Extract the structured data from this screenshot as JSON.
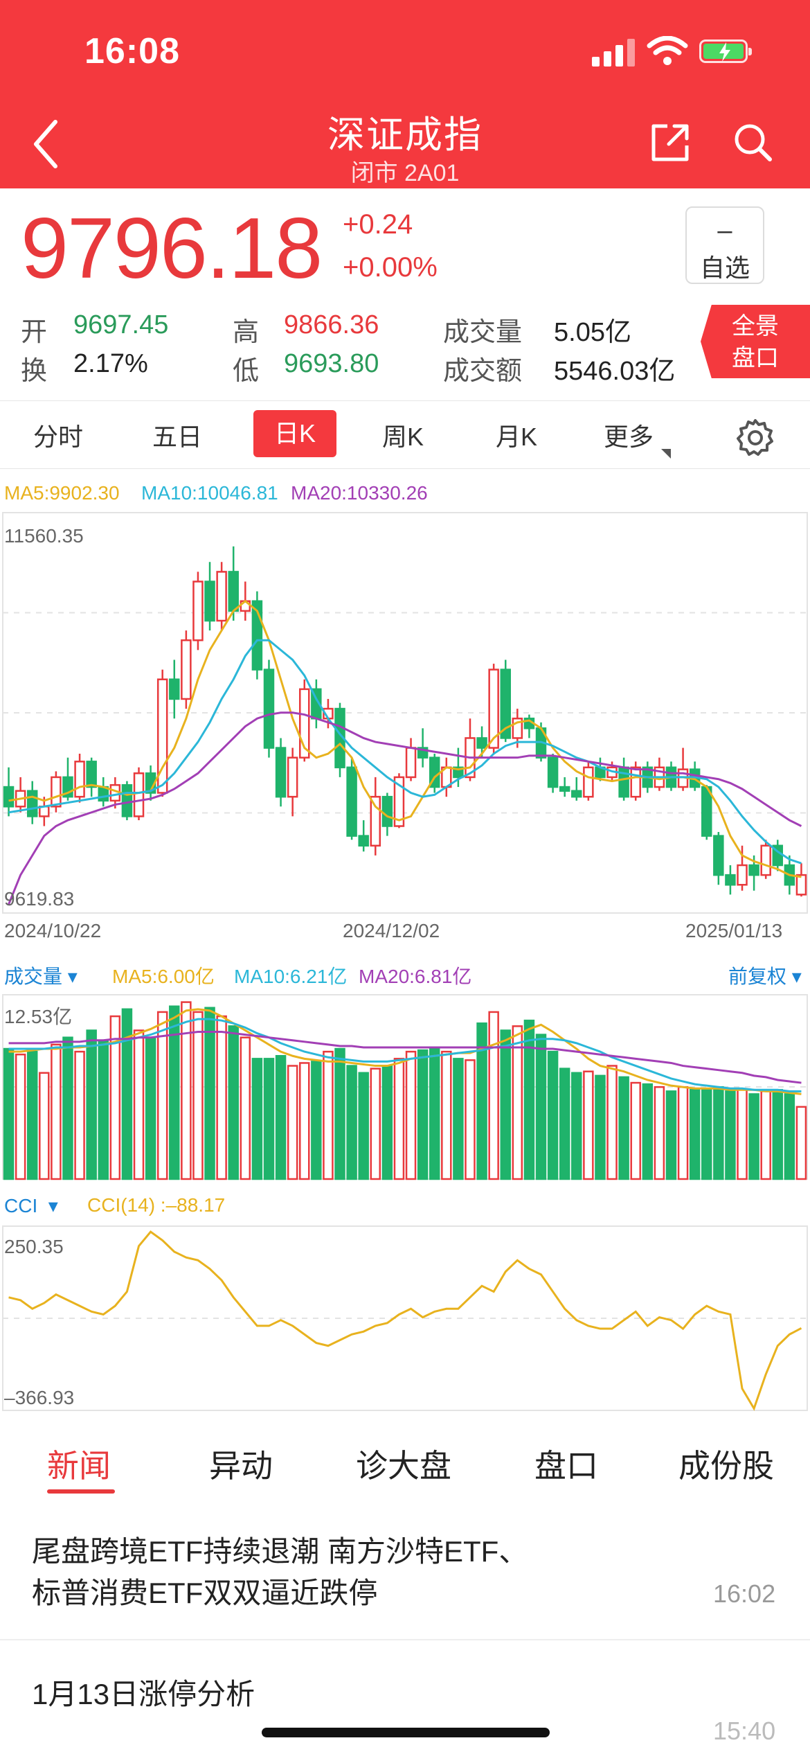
{
  "status": {
    "time": "16:08"
  },
  "header": {
    "title": "深证成指",
    "subtitle": "闭市 2A01",
    "back_icon": "chevron-left-icon",
    "share_icon": "share-icon",
    "search_icon": "search-icon"
  },
  "quote": {
    "price": "9796.18",
    "change": "+0.24",
    "change_pct": "+0.00%",
    "favorite": {
      "mark": "–",
      "label": "自选"
    },
    "stats": [
      {
        "label": "开",
        "value": "9697.45",
        "color": "green"
      },
      {
        "label": "高",
        "value": "9866.36",
        "color": "red"
      },
      {
        "label": "成交量",
        "value": "5.05亿",
        "color": "dark"
      },
      {
        "label": "换",
        "value": "2.17%",
        "color": "dark"
      },
      {
        "label": "低",
        "value": "9693.80",
        "color": "green"
      },
      {
        "label": "成交额",
        "value": "5546.03亿",
        "color": "dark"
      }
    ],
    "panorama": {
      "line1": "全景",
      "line2": "盘口"
    }
  },
  "tabs": {
    "items": [
      "分时",
      "五日",
      "日K",
      "周K",
      "月K",
      "更多"
    ],
    "active": "日K",
    "settings_icon": "gear-icon"
  },
  "main_chart": {
    "ma_labels": [
      "MA5:9902.30",
      "MA10:10046.81",
      "MA20:10330.26"
    ],
    "ma_colors": [
      "#e8b21e",
      "#2bb7d8",
      "#a23fb5"
    ],
    "y_max_label": "11560.35",
    "y_min_label": "9619.83",
    "dates": [
      "2024/10/22",
      "2024/12/02",
      "2025/01/13"
    ]
  },
  "volume_chart": {
    "title": "成交量",
    "ma_labels": [
      "MA5:6.00亿",
      "MA10:6.21亿",
      "MA20:6.81亿"
    ],
    "adjust": "前复权",
    "y_max_label": "12.53亿"
  },
  "cci_chart": {
    "title": "CCI",
    "label": "CCI(14)  :–88.17",
    "y_max_label": "250.35",
    "y_min_label": "–366.93"
  },
  "chart_data": [
    {
      "type": "candlestick",
      "title": "",
      "y_range": [
        9619.83,
        11560.35
      ],
      "x_labels": [
        "2024/10/22",
        "2024/12/02",
        "2025/01/13"
      ],
      "candles": [
        [
          10250,
          10150,
          10350,
          10100
        ],
        [
          10150,
          10230,
          10300,
          10120
        ],
        [
          10230,
          10100,
          10280,
          10060
        ],
        [
          10100,
          10150,
          10200,
          10050
        ],
        [
          10150,
          10300,
          10330,
          10120
        ],
        [
          10300,
          10200,
          10400,
          10180
        ],
        [
          10200,
          10380,
          10420,
          10170
        ],
        [
          10380,
          10250,
          10400,
          10200
        ],
        [
          10250,
          10180,
          10300,
          10150
        ],
        [
          10180,
          10260,
          10300,
          10140
        ],
        [
          10260,
          10100,
          10280,
          10080
        ],
        [
          10100,
          10320,
          10350,
          10080
        ],
        [
          10320,
          10220,
          10360,
          10180
        ],
        [
          10220,
          10800,
          10850,
          10200
        ],
        [
          10800,
          10700,
          10900,
          10600
        ],
        [
          10700,
          11000,
          11050,
          10650
        ],
        [
          11000,
          11300,
          11350,
          10950
        ],
        [
          11300,
          11100,
          11400,
          11050
        ],
        [
          11100,
          11350,
          11400,
          11050
        ],
        [
          11350,
          11150,
          11480,
          11100
        ],
        [
          11150,
          11200,
          11300,
          11100
        ],
        [
          11200,
          10850,
          11250,
          10800
        ],
        [
          10850,
          10450,
          10900,
          10400
        ],
        [
          10450,
          10200,
          10500,
          10150
        ],
        [
          10200,
          10400,
          10450,
          10100
        ],
        [
          10400,
          10750,
          10800,
          10380
        ],
        [
          10750,
          10600,
          10800,
          10550
        ],
        [
          10600,
          10650,
          10700,
          10550
        ],
        [
          10650,
          10350,
          10680,
          10300
        ],
        [
          10350,
          10000,
          10400,
          9980
        ],
        [
          10000,
          9950,
          10080,
          9920
        ],
        [
          9950,
          10200,
          10300,
          9900
        ],
        [
          10200,
          10050,
          10220,
          10000
        ],
        [
          10050,
          10300,
          10320,
          10040
        ],
        [
          10300,
          10450,
          10500,
          10280
        ],
        [
          10450,
          10400,
          10550,
          10350
        ],
        [
          10400,
          10250,
          10420,
          10220
        ],
        [
          10250,
          10350,
          10400,
          10200
        ],
        [
          10350,
          10300,
          10450,
          10250
        ],
        [
          10300,
          10500,
          10600,
          10280
        ],
        [
          10500,
          10450,
          10560,
          10400
        ],
        [
          10450,
          10850,
          10880,
          10420
        ],
        [
          10850,
          10500,
          10900,
          10480
        ],
        [
          10500,
          10600,
          10650,
          10450
        ],
        [
          10600,
          10550,
          10620,
          10500
        ],
        [
          10550,
          10400,
          10580,
          10380
        ],
        [
          10400,
          10250,
          10420,
          10220
        ],
        [
          10250,
          10230,
          10300,
          10200
        ],
        [
          10230,
          10200,
          10300,
          10180
        ],
        [
          10200,
          10350,
          10380,
          10180
        ],
        [
          10350,
          10300,
          10400,
          10280
        ],
        [
          10300,
          10350,
          10380,
          10280
        ],
        [
          10350,
          10200,
          10400,
          10180
        ],
        [
          10200,
          10350,
          10380,
          10180
        ],
        [
          10350,
          10250,
          10380,
          10220
        ],
        [
          10250,
          10350,
          10400,
          10230
        ],
        [
          10350,
          10250,
          10380,
          10230
        ],
        [
          10250,
          10340,
          10450,
          10230
        ],
        [
          10340,
          10250,
          10380,
          10230
        ],
        [
          10250,
          10000,
          10260,
          9980
        ],
        [
          10000,
          9800,
          10020,
          9750
        ],
        [
          9800,
          9750,
          9850,
          9700
        ],
        [
          9750,
          9850,
          9950,
          9720
        ],
        [
          9850,
          9800,
          9900,
          9720
        ],
        [
          9800,
          9950,
          9980,
          9780
        ],
        [
          9950,
          9850,
          9980,
          9820
        ],
        [
          9850,
          9750,
          9900,
          9700
        ],
        [
          9700,
          9800,
          9860,
          9690
        ]
      ],
      "ma5": [
        10180,
        10190,
        10200,
        10180,
        10200,
        10220,
        10250,
        10260,
        10250,
        10230,
        10210,
        10220,
        10230,
        10350,
        10450,
        10600,
        10800,
        10950,
        11050,
        11150,
        11200,
        11150,
        11000,
        10800,
        10600,
        10450,
        10400,
        10420,
        10470,
        10400,
        10250,
        10150,
        10100,
        10080,
        10100,
        10200,
        10300,
        10350,
        10340,
        10350,
        10420,
        10500,
        10550,
        10580,
        10590,
        10550,
        10450,
        10380,
        10330,
        10300,
        10290,
        10280,
        10290,
        10300,
        10300,
        10290,
        10300,
        10300,
        10290,
        10250,
        10150,
        10000,
        9900,
        9870,
        9850,
        9830,
        9800,
        9790
      ],
      "ma10": [
        10120,
        10130,
        10140,
        10150,
        10160,
        10170,
        10180,
        10190,
        10200,
        10210,
        10220,
        10220,
        10230,
        10260,
        10320,
        10400,
        10480,
        10580,
        10700,
        10800,
        10920,
        11000,
        11000,
        10950,
        10900,
        10820,
        10700,
        10600,
        10520,
        10450,
        10400,
        10350,
        10300,
        10260,
        10220,
        10200,
        10210,
        10250,
        10290,
        10320,
        10360,
        10420,
        10460,
        10480,
        10480,
        10480,
        10460,
        10430,
        10400,
        10380,
        10350,
        10330,
        10320,
        10310,
        10300,
        10300,
        10300,
        10300,
        10300,
        10290,
        10250,
        10180,
        10100,
        10030,
        9970,
        9920,
        9880,
        9860
      ],
      "ma20": [
        9650,
        9800,
        9900,
        10000,
        10050,
        10080,
        10100,
        10120,
        10140,
        10160,
        10170,
        10180,
        10190,
        10210,
        10240,
        10280,
        10320,
        10380,
        10440,
        10500,
        10560,
        10600,
        10620,
        10630,
        10630,
        10620,
        10600,
        10580,
        10560,
        10530,
        10500,
        10480,
        10470,
        10460,
        10450,
        10440,
        10430,
        10420,
        10410,
        10400,
        10400,
        10400,
        10400,
        10400,
        10410,
        10410,
        10410,
        10400,
        10390,
        10380,
        10370,
        10360,
        10350,
        10340,
        10340,
        10330,
        10320,
        10320,
        10310,
        10300,
        10290,
        10270,
        10240,
        10200,
        10160,
        10120,
        10080,
        10050
      ]
    },
    {
      "type": "bar",
      "title": "成交量",
      "y_max": 12.53,
      "ylabel": "亿",
      "values": [
        9.2,
        8.8,
        9.0,
        7.5,
        9.5,
        10.0,
        9.0,
        10.5,
        9.8,
        11.5,
        12.0,
        10.5,
        10.0,
        11.8,
        12.2,
        12.5,
        11.8,
        12.1,
        11.5,
        10.8,
        10.0,
        8.5,
        8.5,
        8.7,
        8.0,
        8.2,
        8.3,
        9.0,
        9.2,
        8.0,
        7.5,
        7.8,
        8.0,
        8.5,
        9.0,
        9.1,
        9.2,
        9.0,
        8.5,
        8.4,
        11.0,
        11.8,
        10.5,
        10.8,
        11.2,
        10.2,
        9.0,
        7.8,
        7.5,
        7.6,
        7.3,
        8.0,
        7.2,
        6.8,
        6.7,
        6.5,
        6.2,
        6.5,
        6.3,
        6.4,
        6.5,
        6.2,
        6.3,
        6.0,
        6.2,
        6.3,
        6.0,
        5.1
      ],
      "ma5": [
        9.0,
        9.0,
        9.1,
        9.2,
        9.2,
        9.3,
        9.3,
        9.4,
        9.5,
        9.7,
        10.0,
        10.3,
        10.6,
        11.0,
        11.4,
        11.9,
        12.0,
        11.9,
        11.5,
        11.0,
        10.5,
        10.0,
        9.5,
        9.0,
        8.7,
        8.5,
        8.4,
        8.3,
        8.3,
        8.2,
        8.1,
        8.0,
        8.0,
        8.2,
        8.5,
        8.6,
        8.7,
        8.8,
        8.9,
        8.9,
        9.2,
        9.5,
        9.8,
        10.2,
        10.6,
        10.9,
        10.4,
        9.8,
        9.2,
        8.5,
        8.0,
        7.8,
        7.6,
        7.3,
        7.0,
        6.8,
        6.6,
        6.5,
        6.4,
        6.4,
        6.4,
        6.3,
        6.3,
        6.3,
        6.2,
        6.2,
        6.1,
        6.0
      ],
      "ma10": [
        9.2,
        9.2,
        9.2,
        9.2,
        9.3,
        9.3,
        9.4,
        9.4,
        9.5,
        9.6,
        9.8,
        10.0,
        10.2,
        10.5,
        10.8,
        11.1,
        11.3,
        11.3,
        11.2,
        11.0,
        10.7,
        10.3,
        10.0,
        9.6,
        9.3,
        9.0,
        8.8,
        8.6,
        8.5,
        8.4,
        8.3,
        8.3,
        8.3,
        8.4,
        8.5,
        8.6,
        8.7,
        8.8,
        8.9,
        9.0,
        9.1,
        9.3,
        9.4,
        9.6,
        9.8,
        9.9,
        9.9,
        9.8,
        9.6,
        9.3,
        9.0,
        8.6,
        8.3,
        8.0,
        7.7,
        7.4,
        7.1,
        6.9,
        6.7,
        6.6,
        6.5,
        6.4,
        6.4,
        6.3,
        6.3,
        6.3,
        6.2,
        6.2
      ],
      "ma20": [
        9.6,
        9.6,
        9.6,
        9.6,
        9.7,
        9.7,
        9.7,
        9.8,
        9.8,
        9.9,
        9.9,
        10.0,
        10.0,
        10.1,
        10.2,
        10.3,
        10.4,
        10.4,
        10.4,
        10.3,
        10.2,
        10.1,
        10.0,
        9.9,
        9.8,
        9.7,
        9.6,
        9.5,
        9.4,
        9.4,
        9.3,
        9.3,
        9.3,
        9.3,
        9.3,
        9.3,
        9.3,
        9.3,
        9.3,
        9.3,
        9.3,
        9.3,
        9.3,
        9.3,
        9.3,
        9.2,
        9.2,
        9.1,
        9.0,
        8.9,
        8.8,
        8.7,
        8.6,
        8.5,
        8.4,
        8.3,
        8.2,
        8.0,
        7.9,
        7.8,
        7.7,
        7.6,
        7.5,
        7.3,
        7.2,
        7.0,
        6.9,
        6.8
      ]
    },
    {
      "type": "line",
      "title": "CCI(14)",
      "y_range": [
        -366.93,
        250.35
      ],
      "values": [
        20,
        10,
        -20,
        0,
        30,
        10,
        -10,
        -30,
        -40,
        -10,
        40,
        200,
        250,
        220,
        180,
        160,
        150,
        120,
        80,
        20,
        -30,
        -80,
        -80,
        -60,
        -80,
        -110,
        -140,
        -150,
        -130,
        -110,
        -100,
        -80,
        -70,
        -40,
        -20,
        -50,
        -30,
        -20,
        -20,
        20,
        60,
        40,
        110,
        150,
        120,
        100,
        40,
        -20,
        -60,
        -80,
        -90,
        -90,
        -60,
        -30,
        -80,
        -50,
        -60,
        -90,
        -40,
        -10,
        -30,
        -40,
        -300,
        -370,
        -250,
        -150,
        -110,
        -88.17
      ]
    }
  ]
}
